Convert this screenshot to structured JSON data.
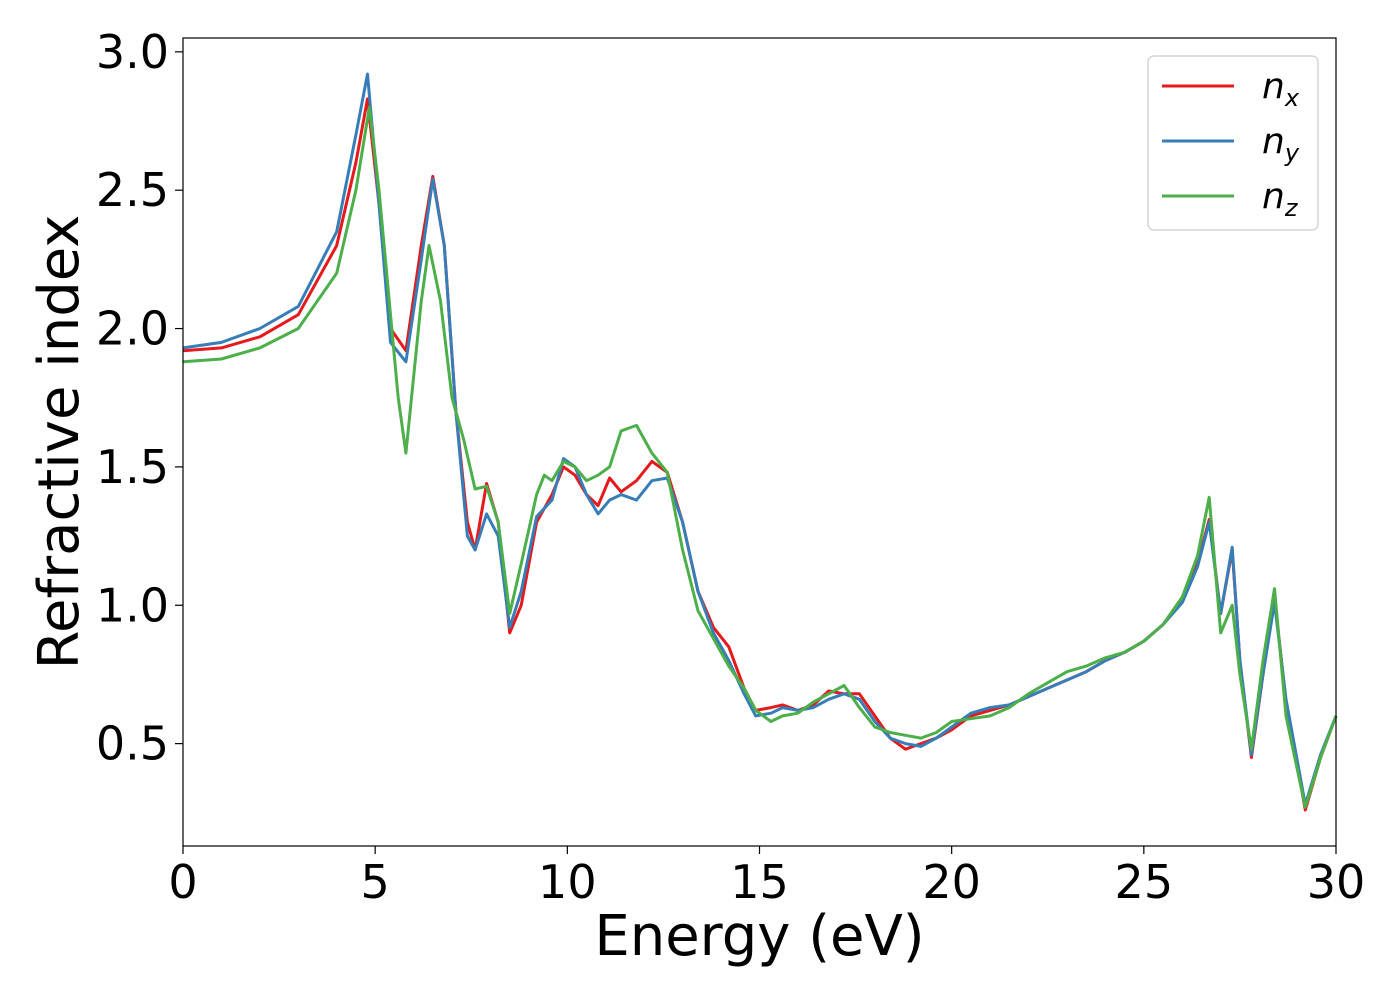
{
  "chart_data": {
    "type": "line",
    "title": "",
    "xlabel": "Energy (eV)",
    "ylabel": "Refractive index",
    "xlim": [
      0,
      30
    ],
    "ylim": [
      0.13,
      3.05
    ],
    "xticks": [
      "0",
      "5",
      "10",
      "15",
      "20",
      "25",
      "30"
    ],
    "yticks": [
      "0.5",
      "1.0",
      "1.5",
      "2.0",
      "2.5",
      "3.0"
    ],
    "grid": false,
    "legend_position": "top-right",
    "legend": [
      {
        "base": "n",
        "sub": "x"
      },
      {
        "base": "n",
        "sub": "y"
      },
      {
        "base": "n",
        "sub": "z"
      }
    ],
    "series": [
      {
        "name": "n_x",
        "color": "#e41a1c",
        "points": [
          [
            0,
            1.92
          ],
          [
            1,
            1.93
          ],
          [
            2,
            1.97
          ],
          [
            3,
            2.05
          ],
          [
            4,
            2.3
          ],
          [
            4.5,
            2.6
          ],
          [
            4.8,
            2.83
          ],
          [
            5.1,
            2.45
          ],
          [
            5.4,
            2.0
          ],
          [
            5.8,
            1.92
          ],
          [
            6.2,
            2.3
          ],
          [
            6.5,
            2.55
          ],
          [
            6.8,
            2.3
          ],
          [
            7.1,
            1.7
          ],
          [
            7.4,
            1.3
          ],
          [
            7.6,
            1.2
          ],
          [
            7.9,
            1.44
          ],
          [
            8.2,
            1.3
          ],
          [
            8.5,
            0.9
          ],
          [
            8.8,
            1.0
          ],
          [
            9.2,
            1.3
          ],
          [
            9.6,
            1.4
          ],
          [
            9.9,
            1.5
          ],
          [
            10.2,
            1.47
          ],
          [
            10.5,
            1.4
          ],
          [
            10.8,
            1.36
          ],
          [
            11.1,
            1.46
          ],
          [
            11.4,
            1.41
          ],
          [
            11.8,
            1.45
          ],
          [
            12.2,
            1.52
          ],
          [
            12.6,
            1.48
          ],
          [
            13.0,
            1.3
          ],
          [
            13.4,
            1.05
          ],
          [
            13.8,
            0.92
          ],
          [
            14.2,
            0.85
          ],
          [
            14.6,
            0.7
          ],
          [
            14.9,
            0.62
          ],
          [
            15.3,
            0.63
          ],
          [
            15.6,
            0.64
          ],
          [
            16.0,
            0.62
          ],
          [
            16.4,
            0.64
          ],
          [
            16.8,
            0.69
          ],
          [
            17.2,
            0.68
          ],
          [
            17.6,
            0.68
          ],
          [
            18.0,
            0.6
          ],
          [
            18.4,
            0.52
          ],
          [
            18.8,
            0.48
          ],
          [
            19.2,
            0.5
          ],
          [
            19.6,
            0.52
          ],
          [
            20.0,
            0.55
          ],
          [
            20.5,
            0.6
          ],
          [
            21.0,
            0.62
          ],
          [
            21.5,
            0.64
          ],
          [
            22.0,
            0.67
          ],
          [
            22.5,
            0.7
          ],
          [
            23.0,
            0.73
          ],
          [
            23.5,
            0.76
          ],
          [
            24.0,
            0.8
          ],
          [
            24.5,
            0.83
          ],
          [
            25.0,
            0.87
          ],
          [
            25.5,
            0.93
          ],
          [
            26.0,
            1.02
          ],
          [
            26.4,
            1.15
          ],
          [
            26.7,
            1.31
          ],
          [
            27.0,
            0.97
          ],
          [
            27.3,
            1.2
          ],
          [
            27.5,
            0.8
          ],
          [
            27.8,
            0.45
          ],
          [
            28.1,
            0.75
          ],
          [
            28.4,
            1.03
          ],
          [
            28.7,
            0.65
          ],
          [
            29.2,
            0.26
          ],
          [
            29.6,
            0.45
          ],
          [
            30,
            0.6
          ]
        ]
      },
      {
        "name": "n_y",
        "color": "#377eb8",
        "points": [
          [
            0,
            1.93
          ],
          [
            1,
            1.95
          ],
          [
            2,
            2.0
          ],
          [
            3,
            2.08
          ],
          [
            4,
            2.35
          ],
          [
            4.5,
            2.7
          ],
          [
            4.8,
            2.92
          ],
          [
            5.1,
            2.45
          ],
          [
            5.4,
            1.95
          ],
          [
            5.8,
            1.88
          ],
          [
            6.2,
            2.25
          ],
          [
            6.5,
            2.54
          ],
          [
            6.8,
            2.3
          ],
          [
            7.1,
            1.7
          ],
          [
            7.4,
            1.25
          ],
          [
            7.6,
            1.2
          ],
          [
            7.9,
            1.33
          ],
          [
            8.2,
            1.25
          ],
          [
            8.5,
            0.92
          ],
          [
            8.8,
            1.05
          ],
          [
            9.2,
            1.32
          ],
          [
            9.6,
            1.38
          ],
          [
            9.9,
            1.53
          ],
          [
            10.2,
            1.5
          ],
          [
            10.5,
            1.4
          ],
          [
            10.8,
            1.33
          ],
          [
            11.1,
            1.38
          ],
          [
            11.4,
            1.4
          ],
          [
            11.8,
            1.38
          ],
          [
            12.2,
            1.45
          ],
          [
            12.6,
            1.46
          ],
          [
            13.0,
            1.3
          ],
          [
            13.4,
            1.05
          ],
          [
            13.8,
            0.9
          ],
          [
            14.2,
            0.8
          ],
          [
            14.6,
            0.68
          ],
          [
            14.9,
            0.6
          ],
          [
            15.3,
            0.61
          ],
          [
            15.6,
            0.63
          ],
          [
            16.0,
            0.62
          ],
          [
            16.4,
            0.63
          ],
          [
            16.8,
            0.66
          ],
          [
            17.2,
            0.68
          ],
          [
            17.6,
            0.66
          ],
          [
            18.0,
            0.58
          ],
          [
            18.4,
            0.52
          ],
          [
            18.8,
            0.5
          ],
          [
            19.2,
            0.49
          ],
          [
            19.6,
            0.52
          ],
          [
            20.0,
            0.56
          ],
          [
            20.5,
            0.61
          ],
          [
            21.0,
            0.63
          ],
          [
            21.5,
            0.64
          ],
          [
            22.0,
            0.67
          ],
          [
            22.5,
            0.7
          ],
          [
            23.0,
            0.73
          ],
          [
            23.5,
            0.76
          ],
          [
            24.0,
            0.8
          ],
          [
            24.5,
            0.83
          ],
          [
            25.0,
            0.87
          ],
          [
            25.5,
            0.93
          ],
          [
            26.0,
            1.01
          ],
          [
            26.4,
            1.14
          ],
          [
            26.7,
            1.3
          ],
          [
            27.0,
            0.97
          ],
          [
            27.3,
            1.21
          ],
          [
            27.5,
            0.8
          ],
          [
            27.8,
            0.46
          ],
          [
            28.1,
            0.75
          ],
          [
            28.4,
            1.01
          ],
          [
            28.7,
            0.66
          ],
          [
            29.2,
            0.28
          ],
          [
            29.6,
            0.46
          ],
          [
            30,
            0.6
          ]
        ]
      },
      {
        "name": "n_z",
        "color": "#4daf4a",
        "points": [
          [
            0,
            1.88
          ],
          [
            1,
            1.89
          ],
          [
            2,
            1.93
          ],
          [
            3,
            2.0
          ],
          [
            4,
            2.2
          ],
          [
            4.5,
            2.5
          ],
          [
            4.85,
            2.8
          ],
          [
            5.1,
            2.5
          ],
          [
            5.4,
            2.05
          ],
          [
            5.6,
            1.75
          ],
          [
            5.8,
            1.55
          ],
          [
            6.2,
            2.1
          ],
          [
            6.4,
            2.3
          ],
          [
            6.7,
            2.1
          ],
          [
            7.0,
            1.75
          ],
          [
            7.3,
            1.6
          ],
          [
            7.6,
            1.42
          ],
          [
            7.9,
            1.43
          ],
          [
            8.2,
            1.3
          ],
          [
            8.5,
            0.97
          ],
          [
            8.8,
            1.15
          ],
          [
            9.2,
            1.4
          ],
          [
            9.4,
            1.47
          ],
          [
            9.6,
            1.45
          ],
          [
            9.9,
            1.52
          ],
          [
            10.2,
            1.5
          ],
          [
            10.5,
            1.45
          ],
          [
            10.8,
            1.47
          ],
          [
            11.1,
            1.5
          ],
          [
            11.4,
            1.63
          ],
          [
            11.8,
            1.65
          ],
          [
            12.2,
            1.55
          ],
          [
            12.6,
            1.48
          ],
          [
            13.0,
            1.2
          ],
          [
            13.4,
            0.98
          ],
          [
            13.8,
            0.88
          ],
          [
            14.2,
            0.78
          ],
          [
            14.6,
            0.7
          ],
          [
            14.9,
            0.62
          ],
          [
            15.3,
            0.58
          ],
          [
            15.6,
            0.6
          ],
          [
            16.0,
            0.61
          ],
          [
            16.4,
            0.65
          ],
          [
            16.8,
            0.68
          ],
          [
            17.2,
            0.71
          ],
          [
            17.6,
            0.63
          ],
          [
            18.0,
            0.56
          ],
          [
            18.4,
            0.54
          ],
          [
            18.8,
            0.53
          ],
          [
            19.2,
            0.52
          ],
          [
            19.6,
            0.54
          ],
          [
            20.0,
            0.58
          ],
          [
            20.5,
            0.59
          ],
          [
            21.0,
            0.6
          ],
          [
            21.5,
            0.63
          ],
          [
            22.0,
            0.68
          ],
          [
            22.5,
            0.72
          ],
          [
            23.0,
            0.76
          ],
          [
            23.5,
            0.78
          ],
          [
            24.0,
            0.81
          ],
          [
            24.5,
            0.83
          ],
          [
            25.0,
            0.87
          ],
          [
            25.5,
            0.93
          ],
          [
            26.0,
            1.03
          ],
          [
            26.4,
            1.18
          ],
          [
            26.7,
            1.39
          ],
          [
            27.0,
            0.9
          ],
          [
            27.3,
            1.0
          ],
          [
            27.5,
            0.75
          ],
          [
            27.8,
            0.48
          ],
          [
            28.1,
            0.8
          ],
          [
            28.4,
            1.06
          ],
          [
            28.7,
            0.6
          ],
          [
            29.2,
            0.27
          ],
          [
            29.6,
            0.45
          ],
          [
            30,
            0.6
          ]
        ]
      }
    ]
  }
}
